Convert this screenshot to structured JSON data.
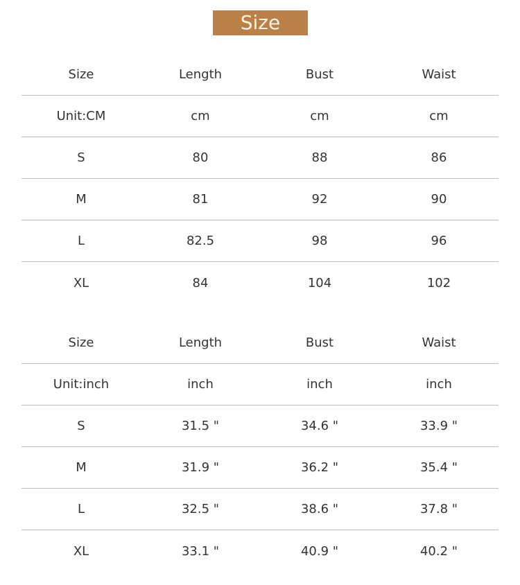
{
  "banner": {
    "title": "Size",
    "color": "#B98148"
  },
  "tables": [
    {
      "headers": [
        "Size",
        "Length",
        "Bust",
        "Waist"
      ],
      "rows": [
        [
          "Unit:CM",
          "cm",
          "cm",
          "cm"
        ],
        [
          "S",
          "80",
          "88",
          "86"
        ],
        [
          "M",
          "81",
          "92",
          "90"
        ],
        [
          "L",
          "82.5",
          "98",
          "96"
        ],
        [
          "XL",
          "84",
          "104",
          "102"
        ]
      ]
    },
    {
      "headers": [
        "Size",
        "Length",
        "Bust",
        "Waist"
      ],
      "rows": [
        [
          "Unit:inch",
          "inch",
          "inch",
          "inch"
        ],
        [
          "S",
          "31.5 \"",
          "34.6 \"",
          "33.9 \""
        ],
        [
          "M",
          "31.9 \"",
          "36.2 \"",
          "35.4 \""
        ],
        [
          "L",
          "32.5 \"",
          "38.6 \"",
          "37.8 \""
        ],
        [
          "XL",
          "33.1 \"",
          "40.9 \"",
          "40.2 \""
        ]
      ]
    }
  ]
}
